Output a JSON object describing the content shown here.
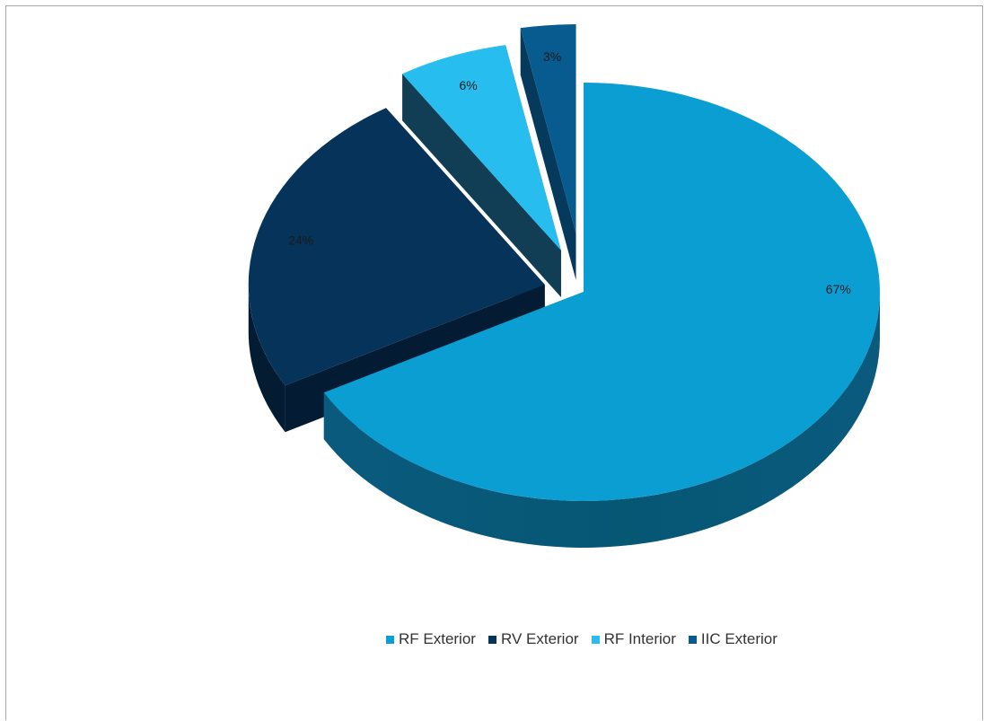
{
  "chart_data": {
    "type": "pie",
    "style": "3d-exploded",
    "categories": [
      "RF Exterior",
      "RV Exterior",
      "RF Interior",
      "IIC Exterior"
    ],
    "values": [
      67,
      24,
      6,
      3
    ],
    "data_labels": [
      "67%",
      "24%",
      "6%",
      "3%"
    ],
    "colors": [
      "#0b9ed2",
      "#06335a",
      "#27bdee",
      "#085b8e"
    ],
    "side_colors": [
      "#0a5a7e",
      "#031c33",
      "#123e55",
      "#053a5c"
    ],
    "legend_position": "bottom",
    "title": ""
  }
}
